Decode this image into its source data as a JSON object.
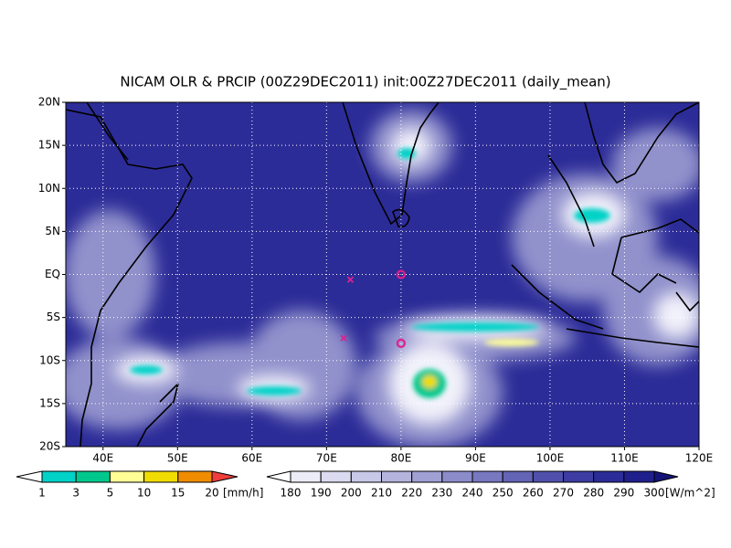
{
  "map": {
    "title": "NICAM OLR & PRCIP (00Z29DEC2011) init:00Z27DEC2011 (daily_mean)",
    "lon_range": [
      35,
      120
    ],
    "lat_range": [
      -20,
      20
    ],
    "lon_ticks": [
      {
        "value": 40,
        "label": "40E"
      },
      {
        "value": 50,
        "label": "50E"
      },
      {
        "value": 60,
        "label": "60E"
      },
      {
        "value": 70,
        "label": "70E"
      },
      {
        "value": 80,
        "label": "80E"
      },
      {
        "value": 90,
        "label": "90E"
      },
      {
        "value": 100,
        "label": "100E"
      },
      {
        "value": 110,
        "label": "110E"
      },
      {
        "value": 120,
        "label": "120E"
      }
    ],
    "lat_ticks": [
      {
        "value": 20,
        "label": "20N"
      },
      {
        "value": 15,
        "label": "15N"
      },
      {
        "value": 10,
        "label": "10N"
      },
      {
        "value": 5,
        "label": "5N"
      },
      {
        "value": 0,
        "label": "EQ"
      },
      {
        "value": -5,
        "label": "5S"
      },
      {
        "value": -10,
        "label": "10S"
      },
      {
        "value": -15,
        "label": "15S"
      },
      {
        "value": -20,
        "label": "20S"
      }
    ],
    "markers": [
      {
        "lon": 73.2,
        "lat": -0.6,
        "shape": "x"
      },
      {
        "lon": 72.3,
        "lat": -7.4,
        "shape": "x"
      },
      {
        "lon": 80,
        "lat": 0,
        "shape": "circle"
      },
      {
        "lon": 80,
        "lat": -8,
        "shape": "circle"
      }
    ],
    "precip_colorbar": {
      "unit": "[mm/h]",
      "levels": [
        1,
        3,
        5,
        10,
        15,
        20
      ],
      "colors": [
        "#ffffff",
        "#00d2c8",
        "#00c88c",
        "#ffff96",
        "#f0dc00",
        "#f08c00",
        "#f03c3c"
      ]
    },
    "olr_colorbar": {
      "unit": "[W/m^2]",
      "levels": [
        180,
        190,
        200,
        210,
        220,
        230,
        240,
        250,
        260,
        270,
        280,
        290,
        300
      ],
      "colors": [
        "#ffffff",
        "#ececf8",
        "#dadaf0",
        "#c8c8e8",
        "#b4b4de",
        "#a0a0d4",
        "#8c8cca",
        "#7878c0",
        "#6464b6",
        "#5050ac",
        "#3c3ca2",
        "#2c2c98",
        "#20208c",
        "#141478"
      ]
    }
  }
}
